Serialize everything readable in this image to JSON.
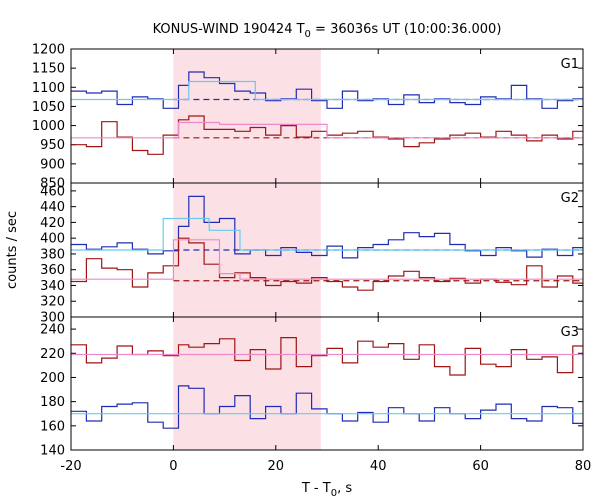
{
  "chart_data": {
    "type": "line",
    "title_main": "KONUS-WIND 190424 T",
    "title_sub": "0",
    "title_rest": " = 36036s UT (10:00:36.000)",
    "xlabel_main": "T - T",
    "xlabel_sub": "0",
    "xlabel_rest": ", s",
    "ylabel": "counts / sec",
    "xlim": [
      -20,
      80
    ],
    "x_ticks": [
      "-20",
      "0",
      "20",
      "40",
      "60",
      "80"
    ],
    "x_tick_values": [
      -20,
      0,
      20,
      40,
      60,
      80
    ],
    "highlight_interval": [
      0,
      28.8
    ],
    "colors": {
      "blue": "#1f2db4",
      "red": "#a01414",
      "lightblue": "#66ccee",
      "pink": "#ee88cc",
      "highlight": "#fbe0e6"
    },
    "panels": [
      {
        "name": "G1",
        "ylim": [
          850,
          1200
        ],
        "y_ticks": [
          850,
          900,
          950,
          1000,
          1050,
          1100,
          1150,
          1200
        ],
        "series": [
          {
            "color": "blue",
            "x": [
              -20,
              -17,
              -14,
              -11,
              -8,
              -5,
              -2,
              1,
              3,
              6,
              9,
              12,
              15,
              18,
              21,
              24,
              27,
              30,
              33,
              36,
              39,
              42,
              45,
              48,
              51,
              54,
              57,
              60,
              63,
              66,
              69,
              72,
              75,
              78,
              80
            ],
            "y": [
              1090,
              1085,
              1090,
              1055,
              1075,
              1070,
              1045,
              1105,
              1140,
              1125,
              1110,
              1090,
              1085,
              1065,
              1070,
              1095,
              1065,
              1045,
              1090,
              1065,
              1070,
              1055,
              1080,
              1060,
              1070,
              1060,
              1055,
              1075,
              1070,
              1105,
              1070,
              1045,
              1065,
              1070,
              1070
            ]
          },
          {
            "color": "red",
            "x": [
              -20,
              -17,
              -14,
              -11,
              -8,
              -5,
              -2,
              1,
              3,
              6,
              9,
              12,
              15,
              18,
              21,
              24,
              27,
              30,
              33,
              36,
              39,
              42,
              45,
              48,
              51,
              54,
              57,
              60,
              63,
              66,
              69,
              72,
              75,
              78,
              80
            ],
            "y": [
              950,
              945,
              1010,
              970,
              935,
              925,
              975,
              1015,
              1025,
              990,
              990,
              985,
              995,
              975,
              1000,
              970,
              985,
              975,
              980,
              985,
              970,
              965,
              945,
              955,
              965,
              975,
              980,
              970,
              985,
              975,
              960,
              975,
              965,
              985,
              980
            ]
          },
          {
            "color": "lightblue",
            "x": [
              -20,
              3,
              16,
              80
            ],
            "y": [
              1068,
              1115,
              1068,
              1068
            ]
          },
          {
            "color": "pink",
            "x": [
              -20,
              1,
              9,
              30,
              80
            ],
            "y": [
              968,
              1008,
              1003,
              968,
              968
            ]
          }
        ],
        "dashed": [
          {
            "color": "blue",
            "y": 1068,
            "x": [
              0,
              80
            ]
          },
          {
            "color": "red",
            "y": 968,
            "x": [
              0,
              80
            ]
          }
        ]
      },
      {
        "name": "G2",
        "ylim": [
          300,
          470
        ],
        "y_ticks": [
          300,
          320,
          340,
          360,
          380,
          400,
          420,
          440,
          460
        ],
        "series": [
          {
            "color": "blue",
            "x": [
              -20,
              -17,
              -14,
              -11,
              -8,
              -5,
              -2,
              1,
              3,
              6,
              9,
              12,
              15,
              18,
              21,
              24,
              27,
              30,
              33,
              36,
              39,
              42,
              45,
              48,
              51,
              54,
              57,
              60,
              63,
              66,
              69,
              72,
              75,
              78,
              80
            ],
            "y": [
              392,
              386,
              389,
              394,
              386,
              380,
              384,
              415,
              453,
              420,
              425,
              380,
              385,
              378,
              388,
              382,
              378,
              390,
              375,
              388,
              392,
              398,
              407,
              402,
              406,
              392,
              384,
              378,
              388,
              384,
              376,
              386,
              378,
              388,
              384
            ]
          },
          {
            "color": "red",
            "x": [
              -20,
              -17,
              -14,
              -11,
              -8,
              -5,
              -2,
              1,
              3,
              6,
              9,
              12,
              15,
              18,
              21,
              24,
              27,
              30,
              33,
              36,
              39,
              42,
              45,
              48,
              51,
              54,
              57,
              60,
              63,
              66,
              69,
              72,
              75,
              78,
              80
            ],
            "y": [
              345,
              374,
              362,
              360,
              338,
              356,
              365,
              400,
              394,
              367,
              350,
              356,
              350,
              340,
              345,
              343,
              350,
              345,
              338,
              334,
              345,
              352,
              358,
              350,
              345,
              349,
              343,
              348,
              344,
              341,
              365,
              338,
              352,
              343,
              349
            ]
          },
          {
            "color": "lightblue",
            "x": [
              -20,
              -2,
              7,
              13,
              80
            ],
            "y": [
              385,
              425,
              410,
              385,
              385
            ]
          },
          {
            "color": "pink",
            "x": [
              -20,
              0,
              9,
              13,
              80
            ],
            "y": [
              348,
              398,
              355,
              348,
              348
            ]
          }
        ],
        "dashed": [
          {
            "color": "blue",
            "y": 385,
            "x": [
              0,
              80
            ]
          },
          {
            "color": "red",
            "y": 346,
            "x": [
              0,
              80
            ]
          }
        ]
      },
      {
        "name": "G3",
        "ylim": [
          140,
          250
        ],
        "y_ticks": [
          140,
          160,
          180,
          200,
          220,
          240
        ],
        "series": [
          {
            "color": "blue",
            "x": [
              -20,
              -17,
              -14,
              -11,
              -8,
              -5,
              -2,
              1,
              3,
              6,
              9,
              12,
              15,
              18,
              21,
              24,
              27,
              30,
              33,
              36,
              39,
              42,
              45,
              48,
              51,
              54,
              57,
              60,
              63,
              66,
              69,
              72,
              75,
              78,
              80
            ],
            "y": [
              172,
              164,
              176,
              178,
              179,
              163,
              158,
              193,
              191,
              170,
              176,
              185,
              166,
              176,
              170,
              187,
              174,
              170,
              164,
              171,
              163,
              175,
              170,
              164,
              175,
              170,
              166,
              173,
              178,
              166,
              164,
              176,
              175,
              162,
              171
            ]
          },
          {
            "color": "red",
            "x": [
              -20,
              -17,
              -14,
              -11,
              -8,
              -5,
              -2,
              1,
              3,
              6,
              9,
              12,
              15,
              18,
              21,
              24,
              27,
              30,
              33,
              36,
              39,
              42,
              45,
              48,
              51,
              54,
              57,
              60,
              63,
              66,
              69,
              72,
              75,
              78,
              80
            ],
            "y": [
              227,
              212,
              216,
              226,
              219,
              222,
              218,
              227,
              225,
              228,
              232,
              214,
              223,
              207,
              233,
              209,
              218,
              224,
              212,
              230,
              225,
              228,
              215,
              227,
              209,
              202,
              224,
              211,
              209,
              223,
              215,
              217,
              204,
              226,
              221
            ]
          },
          {
            "color": "lightblue",
            "x": [
              -20,
              80
            ],
            "y": [
              170,
              170
            ]
          },
          {
            "color": "pink",
            "x": [
              -20,
              80
            ],
            "y": [
              219,
              219
            ]
          }
        ],
        "dashed": []
      }
    ]
  }
}
